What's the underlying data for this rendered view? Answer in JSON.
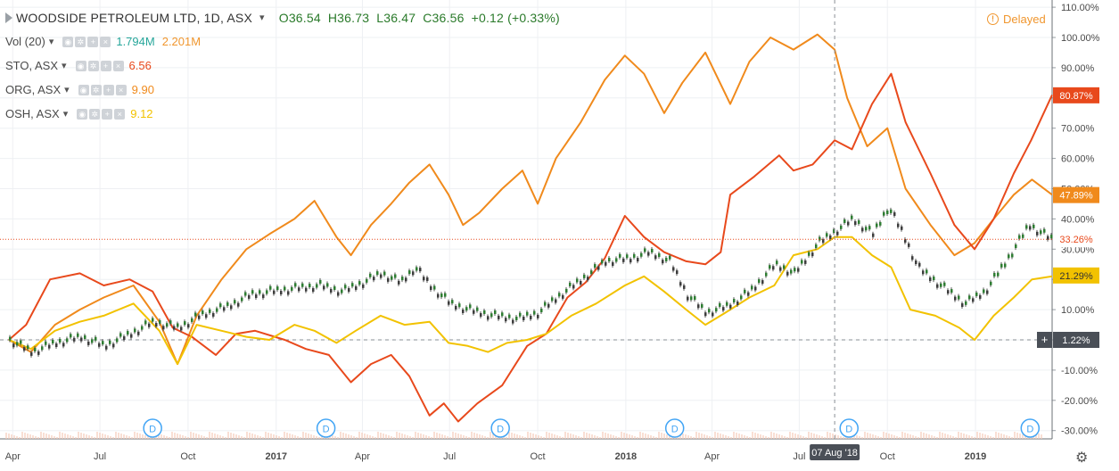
{
  "header": {
    "title": "WOODSIDE PETROLEUM LTD, 1D, ASX",
    "open": "O36.54",
    "high": "H36.73",
    "low": "L36.47",
    "close": "C36.56",
    "change": "+0.12 (+0.33%)",
    "delayed": "Delayed"
  },
  "legend": [
    {
      "name": "Vol (20)",
      "values": [
        "1.794M",
        "2.201M"
      ],
      "colors": [
        "#26a69a",
        "#f0962e"
      ]
    },
    {
      "name": "STO, ASX",
      "values": [
        "6.56"
      ],
      "colors": [
        "#e8491c"
      ]
    },
    {
      "name": "ORG, ASX",
      "values": [
        "9.90"
      ],
      "colors": [
        "#f08a1c"
      ]
    },
    {
      "name": "OSH, ASX",
      "values": [
        "9.12"
      ],
      "colors": [
        "#f2c200"
      ]
    }
  ],
  "badges": {
    "sto": "80.87%",
    "org": "47.89%",
    "wpl": "33.26%",
    "osh": "21.29%",
    "cursor": "1.22%"
  },
  "crosshair_date": "07 Aug '18",
  "colors": {
    "wpl": "#3d3d3d",
    "sto": "#e8491c",
    "org": "#f08a1c",
    "osh": "#f2c200",
    "dividend": "#42a5f5",
    "badge_dark": "#4a4f57"
  },
  "icons": {
    "delayed": "clock-icon",
    "settings": "gear-icon",
    "dividend": "dividend-marker-icon"
  },
  "chart_data": {
    "type": "line",
    "y_unit": "% change",
    "ylim": [
      -32,
      111
    ],
    "y_ticks": [
      "110.00%",
      "100.00%",
      "90.00%",
      "80.00%",
      "70.00%",
      "60.00%",
      "50.00%",
      "40.00%",
      "30.00%",
      "20.00%",
      "10.00%",
      "0.00%",
      "-10.00%",
      "-20.00%",
      "-30.00%"
    ],
    "x_ticks": [
      "Apr",
      "Jul",
      "Oct",
      "2017",
      "Apr",
      "Jul",
      "Oct",
      "2018",
      "Apr",
      "Jul",
      "Oct",
      "2019"
    ],
    "x_range": [
      "2016-03-28",
      "2019-03-22"
    ],
    "dividend_markers": [
      "2016-08-25",
      "2017-02-22",
      "2017-08-23",
      "2018-02-21",
      "2018-08-22",
      "2019-02-27"
    ],
    "dividend_label": "D",
    "series": [
      {
        "name": "WOODSIDE PETROLEUM LTD",
        "key": "wpl",
        "style": "candles",
        "points": [
          [
            "2016-03-28",
            0
          ],
          [
            "2016-04-20",
            -4
          ],
          [
            "2016-05-15",
            -1
          ],
          [
            "2016-06-10",
            1
          ],
          [
            "2016-07-05",
            -2
          ],
          [
            "2016-08-01",
            2
          ],
          [
            "2016-08-25",
            6
          ],
          [
            "2016-09-20",
            4
          ],
          [
            "2016-10-12",
            8
          ],
          [
            "2016-11-10",
            11
          ],
          [
            "2016-12-05",
            15
          ],
          [
            "2016-12-25",
            16
          ],
          [
            "2017-01-20",
            17
          ],
          [
            "2017-02-15",
            18
          ],
          [
            "2017-03-10",
            16
          ],
          [
            "2017-04-01",
            19
          ],
          [
            "2017-04-20",
            22
          ],
          [
            "2017-05-10",
            19
          ],
          [
            "2017-05-25",
            24
          ],
          [
            "2017-06-10",
            18
          ],
          [
            "2017-07-01",
            12
          ],
          [
            "2017-07-20",
            10
          ],
          [
            "2017-08-15",
            8
          ],
          [
            "2017-09-10",
            7
          ],
          [
            "2017-10-01",
            9
          ],
          [
            "2017-10-20",
            14
          ],
          [
            "2017-11-15",
            20
          ],
          [
            "2017-12-10",
            26
          ],
          [
            "2018-01-05",
            27
          ],
          [
            "2018-01-25",
            29
          ],
          [
            "2018-02-15",
            26
          ],
          [
            "2018-03-05",
            15
          ],
          [
            "2018-03-25",
            9
          ],
          [
            "2018-04-15",
            11
          ],
          [
            "2018-05-10",
            16
          ],
          [
            "2018-06-05",
            25
          ],
          [
            "2018-06-25",
            22
          ],
          [
            "2018-07-20",
            32
          ],
          [
            "2018-08-07",
            36
          ],
          [
            "2018-08-25",
            40
          ],
          [
            "2018-09-15",
            35
          ],
          [
            "2018-10-01",
            44
          ],
          [
            "2018-10-15",
            36
          ],
          [
            "2018-11-01",
            24
          ],
          [
            "2018-11-25",
            18
          ],
          [
            "2018-12-20",
            12
          ],
          [
            "2019-01-10",
            16
          ],
          [
            "2019-02-01",
            26
          ],
          [
            "2019-02-25",
            38
          ],
          [
            "2019-03-22",
            33
          ]
        ]
      },
      {
        "name": "STO, ASX",
        "key": "sto",
        "style": "line",
        "points": [
          [
            "2016-03-28",
            0
          ],
          [
            "2016-04-15",
            5
          ],
          [
            "2016-05-10",
            20
          ],
          [
            "2016-06-10",
            22
          ],
          [
            "2016-07-05",
            18
          ],
          [
            "2016-08-01",
            20
          ],
          [
            "2016-08-25",
            16
          ],
          [
            "2016-09-15",
            4
          ],
          [
            "2016-10-05",
            1
          ],
          [
            "2016-10-30",
            -5
          ],
          [
            "2016-11-20",
            2
          ],
          [
            "2016-12-10",
            3
          ],
          [
            "2017-01-10",
            0
          ],
          [
            "2017-02-01",
            -3
          ],
          [
            "2017-02-25",
            -5
          ],
          [
            "2017-03-20",
            -14
          ],
          [
            "2017-04-10",
            -8
          ],
          [
            "2017-05-01",
            -5
          ],
          [
            "2017-05-20",
            -12
          ],
          [
            "2017-06-10",
            -25
          ],
          [
            "2017-06-25",
            -21
          ],
          [
            "2017-07-10",
            -27
          ],
          [
            "2017-07-30",
            -21
          ],
          [
            "2017-08-25",
            -15
          ],
          [
            "2017-09-20",
            -2
          ],
          [
            "2017-10-10",
            2
          ],
          [
            "2017-11-01",
            14
          ],
          [
            "2017-11-20",
            19
          ],
          [
            "2017-12-10",
            27
          ],
          [
            "2017-12-31",
            41
          ],
          [
            "2018-01-20",
            34
          ],
          [
            "2018-02-10",
            29
          ],
          [
            "2018-03-05",
            26
          ],
          [
            "2018-03-25",
            25
          ],
          [
            "2018-04-10",
            29
          ],
          [
            "2018-04-20",
            48
          ],
          [
            "2018-05-15",
            54
          ],
          [
            "2018-06-10",
            61
          ],
          [
            "2018-06-25",
            56
          ],
          [
            "2018-07-15",
            58
          ],
          [
            "2018-08-07",
            66
          ],
          [
            "2018-08-25",
            63
          ],
          [
            "2018-09-15",
            78
          ],
          [
            "2018-10-05",
            88
          ],
          [
            "2018-10-20",
            72
          ],
          [
            "2018-11-15",
            55
          ],
          [
            "2018-12-10",
            38
          ],
          [
            "2018-12-31",
            30
          ],
          [
            "2019-01-20",
            40
          ],
          [
            "2019-02-10",
            55
          ],
          [
            "2019-02-28",
            66
          ],
          [
            "2019-03-22",
            81
          ]
        ]
      },
      {
        "name": "ORG, ASX",
        "key": "org",
        "style": "line",
        "points": [
          [
            "2016-03-28",
            0
          ],
          [
            "2016-04-20",
            -4
          ],
          [
            "2016-05-15",
            5
          ],
          [
            "2016-06-10",
            10
          ],
          [
            "2016-07-05",
            14
          ],
          [
            "2016-08-05",
            18
          ],
          [
            "2016-09-01",
            6
          ],
          [
            "2016-09-20",
            -8
          ],
          [
            "2016-10-10",
            8
          ],
          [
            "2016-11-05",
            20
          ],
          [
            "2016-12-01",
            30
          ],
          [
            "2016-12-25",
            35
          ],
          [
            "2017-01-20",
            40
          ],
          [
            "2017-02-10",
            46
          ],
          [
            "2017-03-05",
            34
          ],
          [
            "2017-03-20",
            28
          ],
          [
            "2017-04-10",
            38
          ],
          [
            "2017-05-01",
            45
          ],
          [
            "2017-05-20",
            52
          ],
          [
            "2017-06-10",
            58
          ],
          [
            "2017-06-30",
            48
          ],
          [
            "2017-07-15",
            38
          ],
          [
            "2017-08-01",
            42
          ],
          [
            "2017-08-25",
            50
          ],
          [
            "2017-09-15",
            56
          ],
          [
            "2017-10-01",
            45
          ],
          [
            "2017-10-20",
            60
          ],
          [
            "2017-11-15",
            72
          ],
          [
            "2017-12-10",
            86
          ],
          [
            "2017-12-31",
            94
          ],
          [
            "2018-01-20",
            88
          ],
          [
            "2018-02-10",
            75
          ],
          [
            "2018-03-01",
            85
          ],
          [
            "2018-03-25",
            95
          ],
          [
            "2018-04-20",
            78
          ],
          [
            "2018-05-10",
            92
          ],
          [
            "2018-06-01",
            100
          ],
          [
            "2018-06-25",
            96
          ],
          [
            "2018-07-20",
            101
          ],
          [
            "2018-08-07",
            96
          ],
          [
            "2018-08-20",
            80
          ],
          [
            "2018-09-10",
            64
          ],
          [
            "2018-10-01",
            70
          ],
          [
            "2018-10-20",
            50
          ],
          [
            "2018-11-15",
            38
          ],
          [
            "2018-12-10",
            28
          ],
          [
            "2018-12-31",
            32
          ],
          [
            "2019-01-20",
            40
          ],
          [
            "2019-02-10",
            48
          ],
          [
            "2019-03-01",
            53
          ],
          [
            "2019-03-22",
            48
          ]
        ]
      },
      {
        "name": "OSH, ASX",
        "key": "osh",
        "style": "line",
        "points": [
          [
            "2016-03-28",
            0
          ],
          [
            "2016-04-20",
            -3
          ],
          [
            "2016-05-15",
            3
          ],
          [
            "2016-06-10",
            6
          ],
          [
            "2016-07-05",
            8
          ],
          [
            "2016-08-05",
            12
          ],
          [
            "2016-09-01",
            3
          ],
          [
            "2016-09-20",
            -8
          ],
          [
            "2016-10-10",
            5
          ],
          [
            "2016-11-05",
            3
          ],
          [
            "2016-12-01",
            1
          ],
          [
            "2016-12-25",
            0
          ],
          [
            "2017-01-20",
            5
          ],
          [
            "2017-02-10",
            3
          ],
          [
            "2017-03-05",
            -1
          ],
          [
            "2017-03-25",
            3
          ],
          [
            "2017-04-20",
            8
          ],
          [
            "2017-05-15",
            5
          ],
          [
            "2017-06-10",
            6
          ],
          [
            "2017-06-30",
            -1
          ],
          [
            "2017-07-20",
            -2
          ],
          [
            "2017-08-10",
            -4
          ],
          [
            "2017-08-30",
            -1
          ],
          [
            "2017-09-20",
            0
          ],
          [
            "2017-10-10",
            2
          ],
          [
            "2017-11-05",
            8
          ],
          [
            "2017-12-01",
            12
          ],
          [
            "2017-12-31",
            18
          ],
          [
            "2018-01-20",
            21
          ],
          [
            "2018-02-10",
            16
          ],
          [
            "2018-03-05",
            10
          ],
          [
            "2018-03-25",
            5
          ],
          [
            "2018-04-15",
            9
          ],
          [
            "2018-05-10",
            14
          ],
          [
            "2018-06-05",
            18
          ],
          [
            "2018-06-25",
            28
          ],
          [
            "2018-07-20",
            30
          ],
          [
            "2018-08-07",
            34
          ],
          [
            "2018-08-25",
            34
          ],
          [
            "2018-09-15",
            28
          ],
          [
            "2018-10-05",
            24
          ],
          [
            "2018-10-25",
            10
          ],
          [
            "2018-11-20",
            8
          ],
          [
            "2018-12-15",
            4
          ],
          [
            "2018-12-31",
            0
          ],
          [
            "2019-01-20",
            8
          ],
          [
            "2019-02-10",
            14
          ],
          [
            "2019-03-01",
            20
          ],
          [
            "2019-03-22",
            21
          ]
        ]
      }
    ]
  }
}
